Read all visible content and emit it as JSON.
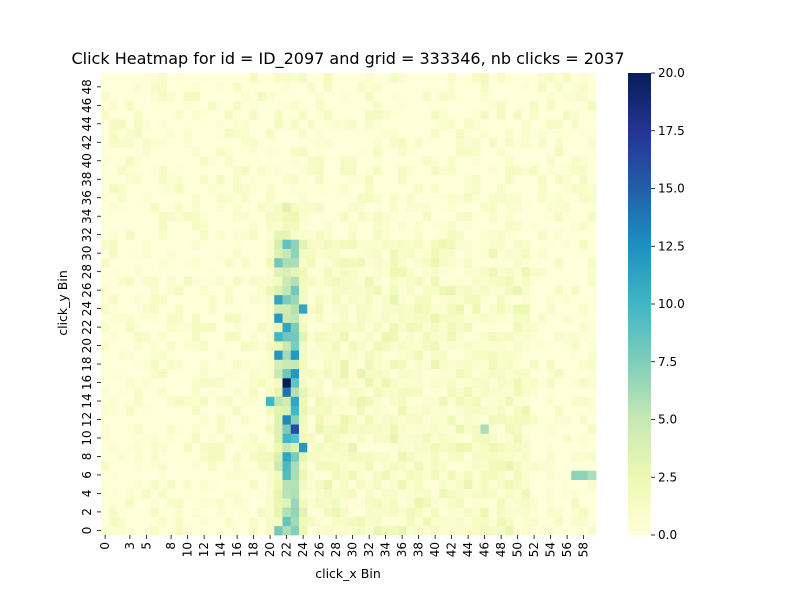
{
  "chart_data": {
    "type": "heatmap",
    "title": "Click Heatmap for id = ID_2097 and grid = 333346, nb clicks = 2037",
    "xlabel": "click_x Bin",
    "ylabel": "click_y Bin",
    "x_bins": 60,
    "y_bins": 50,
    "x_range": [
      0,
      59
    ],
    "y_range": [
      0,
      49
    ],
    "x_tick_labels": [
      "0",
      "3",
      "5",
      "8",
      "10",
      "12",
      "14",
      "16",
      "18",
      "20",
      "22",
      "24",
      "26",
      "28",
      "30",
      "32",
      "34",
      "36",
      "38",
      "40",
      "42",
      "44",
      "46",
      "48",
      "50",
      "52",
      "54",
      "56",
      "58"
    ],
    "y_tick_labels": [
      "0",
      "2",
      "4",
      "6",
      "8",
      "10",
      "12",
      "14",
      "16",
      "18",
      "20",
      "22",
      "24",
      "26",
      "28",
      "30",
      "32",
      "34",
      "36",
      "38",
      "40",
      "42",
      "44",
      "46",
      "48"
    ],
    "colorbar": {
      "min": 0,
      "max": 20,
      "ticks": [
        "0.0",
        "2.5",
        "5.0",
        "7.5",
        "10.0",
        "12.5",
        "15.0",
        "17.5",
        "20.0"
      ],
      "colormap": "YlGnBu",
      "colors": [
        "#ffffd9",
        "#edf8b1",
        "#c7e9b4",
        "#7fcdbb",
        "#41b6c4",
        "#1d91c0",
        "#225ea8",
        "#253494",
        "#081d58"
      ]
    },
    "hotspots": [
      {
        "x": 22,
        "y": 16,
        "value": 20
      },
      {
        "x": 23,
        "y": 11,
        "value": 16
      },
      {
        "x": 22,
        "y": 15,
        "value": 14
      },
      {
        "x": 21,
        "y": 23,
        "value": 12
      },
      {
        "x": 23,
        "y": 19,
        "value": 12
      },
      {
        "x": 24,
        "y": 9,
        "value": 12
      },
      {
        "x": 22,
        "y": 12,
        "value": 13
      },
      {
        "x": 23,
        "y": 17,
        "value": 12
      },
      {
        "x": 21,
        "y": 25,
        "value": 11
      },
      {
        "x": 24,
        "y": 24,
        "value": 11
      },
      {
        "x": 22,
        "y": 8,
        "value": 11
      },
      {
        "x": 21,
        "y": 19,
        "value": 12
      },
      {
        "x": 22,
        "y": 22,
        "value": 11
      },
      {
        "x": 20,
        "y": 14,
        "value": 10
      },
      {
        "x": 23,
        "y": 14,
        "value": 11
      },
      {
        "x": 23,
        "y": 13,
        "value": 10
      },
      {
        "x": 21,
        "y": 21,
        "value": 10
      },
      {
        "x": 22,
        "y": 10,
        "value": 10
      },
      {
        "x": 21,
        "y": 29,
        "value": 8
      },
      {
        "x": 23,
        "y": 30,
        "value": 7
      },
      {
        "x": 21,
        "y": 0,
        "value": 8
      },
      {
        "x": 46,
        "y": 11,
        "value": 6
      },
      {
        "x": 57,
        "y": 6,
        "value": 7
      },
      {
        "x": 58,
        "y": 6,
        "value": 7
      },
      {
        "x": 59,
        "y": 6,
        "value": 6
      }
    ]
  }
}
